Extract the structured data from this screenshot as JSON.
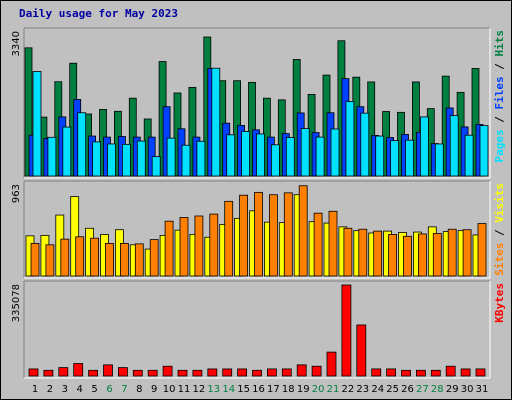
{
  "title": "Daily usage for May 2023",
  "colors": {
    "hits": "#008040",
    "files": "#0040ff",
    "pages": "#00e0ff",
    "visits": "#ffff00",
    "sites": "#ff8000",
    "kbytes": "#ff0000",
    "weekend_label": "#008040",
    "weekday_label": "#000000",
    "panel_bg": "#c0c0c0",
    "title": "#0000a0"
  },
  "chart_data": [
    {
      "type": "bar",
      "panel": "hits_files_pages",
      "y_tick_label": "3340",
      "ylim": [
        0,
        3340
      ],
      "legend": [
        {
          "key": "pages",
          "label": "Pages",
          "color": "#00e0ff"
        },
        {
          "key": "sep1",
          "label": " / ",
          "color": "#000000"
        },
        {
          "key": "files",
          "label": "Files",
          "color": "#0040ff"
        },
        {
          "key": "sep2",
          "label": " / ",
          "color": "#000000"
        },
        {
          "key": "hits",
          "label": "Hits",
          "color": "#008040"
        }
      ],
      "categories": [
        "1",
        "2",
        "3",
        "4",
        "5",
        "6",
        "7",
        "8",
        "9",
        "10",
        "11",
        "12",
        "13",
        "14",
        "15",
        "16",
        "17",
        "18",
        "19",
        "20",
        "21",
        "22",
        "23",
        "24",
        "25",
        "26",
        "27",
        "28",
        "29",
        "30",
        "31"
      ],
      "series": [
        {
          "name": "Hits",
          "values": [
            3080,
            1415,
            2265,
            2710,
            1490,
            1600,
            1555,
            1870,
            1370,
            2750,
            1995,
            2130,
            3340,
            2290,
            2290,
            2250,
            1870,
            1830,
            2800,
            1960,
            2425,
            3250,
            2375,
            2260,
            1550,
            1530,
            2260,
            1620,
            2400,
            2010,
            2585
          ]
        },
        {
          "name": "Files",
          "values": [
            980,
            900,
            1420,
            1840,
            960,
            935,
            950,
            935,
            935,
            1665,
            1135,
            935,
            2585,
            1270,
            1215,
            1110,
            935,
            1020,
            1515,
            1045,
            1520,
            2340,
            1665,
            975,
            925,
            1000,
            1045,
            780,
            1635,
            1180,
            1240
          ]
        },
        {
          "name": "Pages",
          "values": [
            2510,
            930,
            1175,
            1520,
            820,
            770,
            760,
            840,
            465,
            910,
            740,
            835,
            2590,
            990,
            1070,
            1010,
            750,
            925,
            1140,
            935,
            1130,
            1790,
            1510,
            960,
            850,
            860,
            1420,
            770,
            1450,
            980,
            1210
          ]
        }
      ]
    },
    {
      "type": "bar",
      "panel": "visits_sites",
      "y_tick_label": "963",
      "ylim": [
        0,
        963
      ],
      "legend": [
        {
          "key": "sites",
          "label": "Sites",
          "color": "#ff8000"
        },
        {
          "key": "sep1",
          "label": " / ",
          "color": "#000000"
        },
        {
          "key": "visits",
          "label": "Visits",
          "color": "#ffff00"
        }
      ],
      "categories": [
        "1",
        "2",
        "3",
        "4",
        "5",
        "6",
        "7",
        "8",
        "9",
        "10",
        "11",
        "12",
        "13",
        "14",
        "15",
        "16",
        "17",
        "18",
        "19",
        "20",
        "21",
        "22",
        "23",
        "24",
        "25",
        "26",
        "27",
        "28",
        "29",
        "30",
        "31"
      ],
      "series": [
        {
          "name": "Visits",
          "values": [
            425,
            430,
            645,
            840,
            505,
            440,
            490,
            330,
            285,
            430,
            485,
            440,
            410,
            545,
            610,
            690,
            570,
            565,
            860,
            575,
            560,
            520,
            480,
            455,
            475,
            460,
            465,
            520,
            470,
            480,
            435
          ]
        },
        {
          "name": "Sites",
          "values": [
            345,
            330,
            390,
            415,
            400,
            345,
            345,
            340,
            385,
            580,
            620,
            635,
            655,
            790,
            855,
            885,
            860,
            880,
            955,
            665,
            685,
            505,
            495,
            475,
            440,
            420,
            445,
            450,
            495,
            490,
            555
          ]
        }
      ]
    },
    {
      "type": "bar",
      "panel": "kbytes",
      "y_tick_label": "335078",
      "ylim": [
        0,
        335078
      ],
      "legend": [
        {
          "key": "kbytes",
          "label": "KBytes",
          "color": "#ff0000"
        }
      ],
      "categories": [
        "1",
        "2",
        "3",
        "4",
        "5",
        "6",
        "7",
        "8",
        "9",
        "10",
        "11",
        "12",
        "13",
        "14",
        "15",
        "16",
        "17",
        "18",
        "19",
        "20",
        "21",
        "22",
        "23",
        "24",
        "25",
        "26",
        "27",
        "28",
        "29",
        "30",
        "31"
      ],
      "series": [
        {
          "name": "KBytes",
          "values": [
            26000,
            21000,
            31000,
            46000,
            21000,
            41000,
            31000,
            21000,
            21000,
            36000,
            21000,
            21000,
            26000,
            26000,
            26000,
            21000,
            26000,
            26000,
            41000,
            36000,
            88000,
            335000,
            188000,
            26000,
            26000,
            21000,
            21000,
            21000,
            36000,
            26000,
            26000
          ]
        }
      ]
    }
  ],
  "x_labels": [
    {
      "text": "1",
      "weekend": false
    },
    {
      "text": "2",
      "weekend": false
    },
    {
      "text": "3",
      "weekend": false
    },
    {
      "text": "4",
      "weekend": false
    },
    {
      "text": "5",
      "weekend": false
    },
    {
      "text": "6",
      "weekend": true
    },
    {
      "text": "7",
      "weekend": true
    },
    {
      "text": "8",
      "weekend": false
    },
    {
      "text": "9",
      "weekend": false
    },
    {
      "text": "10",
      "weekend": false
    },
    {
      "text": "11",
      "weekend": false
    },
    {
      "text": "12",
      "weekend": false
    },
    {
      "text": "13",
      "weekend": true
    },
    {
      "text": "14",
      "weekend": true
    },
    {
      "text": "15",
      "weekend": false
    },
    {
      "text": "16",
      "weekend": false
    },
    {
      "text": "17",
      "weekend": false
    },
    {
      "text": "18",
      "weekend": false
    },
    {
      "text": "19",
      "weekend": false
    },
    {
      "text": "20",
      "weekend": true
    },
    {
      "text": "21",
      "weekend": true
    },
    {
      "text": "22",
      "weekend": false
    },
    {
      "text": "23",
      "weekend": false
    },
    {
      "text": "24",
      "weekend": false
    },
    {
      "text": "25",
      "weekend": false
    },
    {
      "text": "26",
      "weekend": false
    },
    {
      "text": "27",
      "weekend": true
    },
    {
      "text": "28",
      "weekend": true
    },
    {
      "text": "29",
      "weekend": false
    },
    {
      "text": "30",
      "weekend": false
    },
    {
      "text": "31",
      "weekend": false
    }
  ]
}
